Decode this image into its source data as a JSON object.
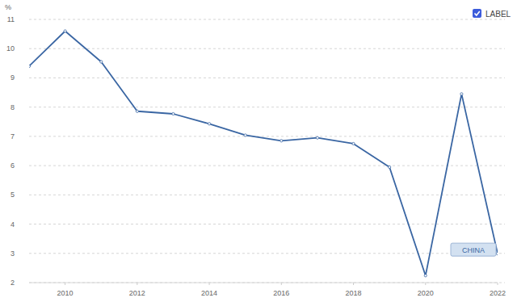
{
  "chart_data": {
    "type": "line",
    "y_label": "%",
    "legend_title": "LABEL",
    "x": [
      2009,
      2010,
      2011,
      2012,
      2013,
      2014,
      2015,
      2016,
      2017,
      2018,
      2019,
      2020,
      2021,
      2022
    ],
    "series": [
      {
        "name": "CHINA",
        "color": "#3a66a3",
        "marker": "circle",
        "values": [
          9.4,
          10.6,
          9.55,
          7.86,
          7.77,
          7.43,
          7.04,
          6.85,
          6.95,
          6.75,
          5.95,
          2.24,
          8.45,
          2.99
        ]
      }
    ],
    "xlim": [
      2009,
      2022
    ],
    "xticks": [
      2010,
      2012,
      2014,
      2016,
      2018,
      2020,
      2022
    ],
    "ylim": [
      2,
      11
    ],
    "yticks": [
      2,
      3,
      4,
      5,
      6,
      7,
      8,
      9,
      10,
      11
    ],
    "grid": true,
    "legend": "top-right"
  }
}
